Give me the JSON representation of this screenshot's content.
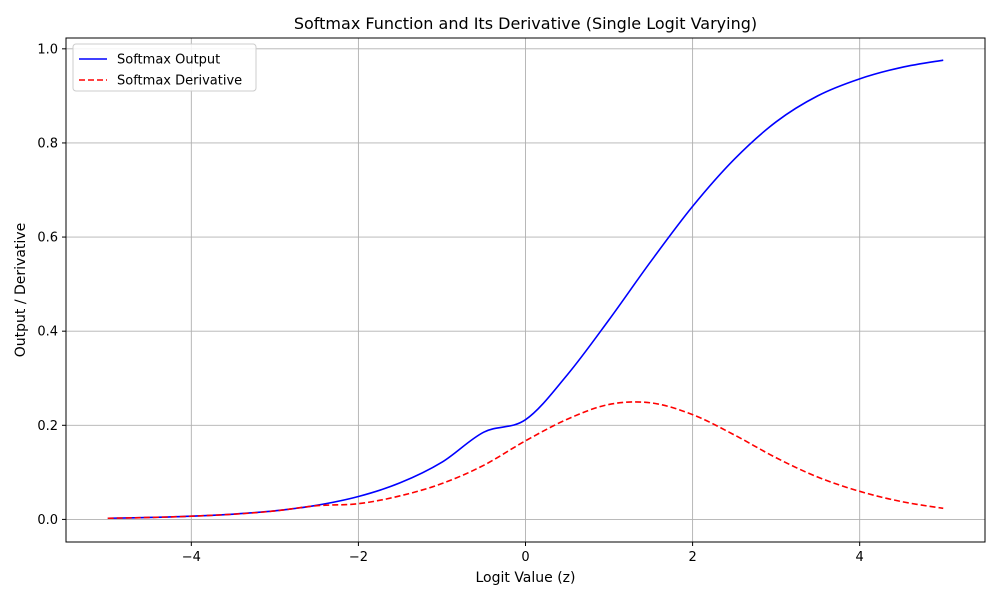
{
  "chart_data": {
    "type": "line",
    "title": "Softmax Function and Its Derivative (Single Logit Varying)",
    "xlabel": "Logit Value (z)",
    "ylabel": "Output / Derivative",
    "xlim": [
      -5.5,
      5.5
    ],
    "ylim": [
      -0.048,
      1.023
    ],
    "xticks": [
      -4,
      -2,
      0,
      2,
      4
    ],
    "xtick_labels": [
      "−4",
      "−2",
      "0",
      "2",
      "4"
    ],
    "yticks": [
      0.0,
      0.2,
      0.4,
      0.6,
      0.8,
      1.0
    ],
    "ytick_labels": [
      "0.0",
      "0.2",
      "0.4",
      "0.6",
      "0.8",
      "1.0"
    ],
    "grid": true,
    "legend_position": "top-left",
    "x": [
      -5,
      -4.5,
      -4,
      -3.5,
      -3,
      -2.5,
      -2,
      -1.5,
      -1,
      -0.5,
      0,
      0.5,
      1,
      1.5,
      2,
      2.5,
      3,
      3.5,
      4,
      4.5,
      5
    ],
    "series": [
      {
        "name": "Softmax Output",
        "color": "#0000ff",
        "style": "solid",
        "values": [
          0.0025,
          0.0041,
          0.0068,
          0.0112,
          0.0183,
          0.03,
          0.0487,
          0.0778,
          0.1216,
          0.1854,
          0.2119,
          0.3072,
          0.4243,
          0.5482,
          0.6652,
          0.7655,
          0.8449,
          0.9003,
          0.9362,
          0.9605,
          0.9759
        ]
      },
      {
        "name": "Softmax Derivative",
        "color": "#ff0000",
        "style": "dashed",
        "values": [
          0.0025,
          0.0041,
          0.0068,
          0.011,
          0.018,
          0.0291,
          0.0334,
          0.0501,
          0.0762,
          0.115,
          0.167,
          0.2129,
          0.2443,
          0.2477,
          0.2227,
          0.1795,
          0.131,
          0.0898,
          0.0597,
          0.0379,
          0.0235
        ]
      }
    ]
  }
}
